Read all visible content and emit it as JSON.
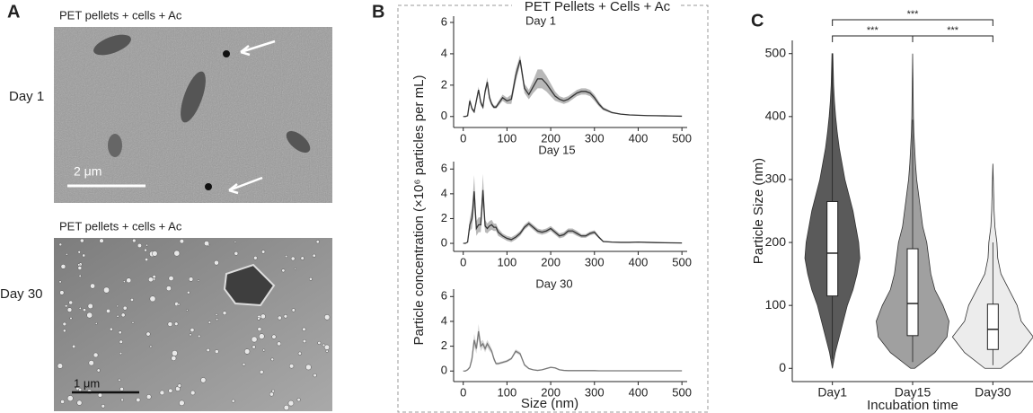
{
  "panels": {
    "panel_labels": [
      "A",
      "B",
      "C"
    ],
    "panel_a": {
      "images": [
        {
          "caption": "PET pellets + cells +  Ac",
          "label": "Day 1",
          "scale_bar": "2 μm"
        },
        {
          "caption": "PET pellets + cells + Ac",
          "label": "Day 30",
          "scale_bar": "1 μm"
        }
      ]
    },
    "panel_b": {
      "title": "PET Pellets + Cells + Ac",
      "ylabel": "Particle concentration (×10⁶ particles per mL)",
      "xlabel": "Size (nm)"
    }
  },
  "chart_data": [
    {
      "type": "line",
      "title": "Day 1",
      "color": "#333333",
      "band_color": "#a6a6a6",
      "x": [
        0,
        5,
        10,
        15,
        20,
        25,
        30,
        35,
        40,
        45,
        50,
        55,
        60,
        65,
        70,
        75,
        80,
        90,
        100,
        110,
        120,
        130,
        140,
        150,
        160,
        170,
        180,
        190,
        200,
        210,
        220,
        230,
        240,
        250,
        260,
        270,
        280,
        290,
        300,
        310,
        320,
        340,
        360,
        380,
        400,
        420,
        440,
        460,
        480,
        500
      ],
      "values": [
        0,
        0,
        0.05,
        1.0,
        0.5,
        0.3,
        1.0,
        1.7,
        0.9,
        0.6,
        1.6,
        2.2,
        1.2,
        0.8,
        0.6,
        0.6,
        0.8,
        1.2,
        1.0,
        1.1,
        2.6,
        3.6,
        1.8,
        1.4,
        1.9,
        2.4,
        2.4,
        2.1,
        1.7,
        1.3,
        1.1,
        1.0,
        1.1,
        1.3,
        1.5,
        1.6,
        1.6,
        1.5,
        1.2,
        0.8,
        0.5,
        0.25,
        0.15,
        0.1,
        0.08,
        0.06,
        0.05,
        0.04,
        0.03,
        0.02
      ],
      "errors": [
        0,
        0,
        0.02,
        0.2,
        0.1,
        0.1,
        0.2,
        0.2,
        0.2,
        0.1,
        0.2,
        0.3,
        0.2,
        0.15,
        0.1,
        0.1,
        0.15,
        0.2,
        0.2,
        0.3,
        0.4,
        0.3,
        0.3,
        0.3,
        0.4,
        0.6,
        0.6,
        0.5,
        0.4,
        0.3,
        0.2,
        0.2,
        0.2,
        0.2,
        0.2,
        0.2,
        0.2,
        0.2,
        0.2,
        0.15,
        0.1,
        0.05,
        0.03,
        0.02,
        0.02,
        0.01,
        0.01,
        0.01,
        0.01,
        0.01
      ],
      "xlim": [
        -22,
        512
      ],
      "ylim": [
        -0.7,
        6.4
      ],
      "xticks": [
        0,
        100,
        200,
        300,
        400,
        500
      ],
      "yticks": [
        0,
        2,
        4,
        6
      ]
    },
    {
      "type": "line",
      "title": "Day 15",
      "color": "#333333",
      "band_color": "#a6a6a6",
      "x": [
        0,
        5,
        10,
        15,
        20,
        25,
        30,
        35,
        40,
        45,
        50,
        55,
        60,
        65,
        70,
        75,
        80,
        90,
        100,
        110,
        120,
        130,
        140,
        150,
        160,
        170,
        180,
        190,
        200,
        210,
        220,
        230,
        240,
        250,
        260,
        270,
        280,
        290,
        300,
        310,
        320,
        340,
        360,
        380,
        400,
        420,
        440,
        460,
        480,
        500
      ],
      "values": [
        0,
        0,
        0.1,
        1.5,
        2.0,
        4.2,
        1.2,
        1.5,
        1.5,
        4.3,
        1.4,
        1.2,
        1.4,
        1.5,
        1.3,
        1.3,
        0.9,
        0.6,
        0.4,
        0.3,
        0.5,
        0.8,
        1.3,
        1.6,
        1.3,
        1.0,
        0.9,
        1.0,
        1.2,
        0.9,
        0.6,
        0.7,
        1.0,
        1.0,
        0.8,
        0.6,
        0.6,
        0.8,
        0.9,
        0.5,
        0.15,
        0.1,
        0.08,
        0.08,
        0.1,
        0.08,
        0.06,
        0.05,
        0.04,
        0.03
      ],
      "errors": [
        0,
        0,
        0.05,
        0.5,
        0.8,
        1.3,
        0.6,
        0.6,
        0.6,
        1.3,
        0.5,
        0.4,
        0.4,
        0.4,
        0.3,
        0.3,
        0.3,
        0.2,
        0.2,
        0.2,
        0.2,
        0.2,
        0.2,
        0.2,
        0.2,
        0.2,
        0.2,
        0.2,
        0.2,
        0.2,
        0.2,
        0.2,
        0.2,
        0.2,
        0.2,
        0.15,
        0.15,
        0.15,
        0.15,
        0.1,
        0.05,
        0.03,
        0.03,
        0.03,
        0.03,
        0.03,
        0.03,
        0.03,
        0.03,
        0.03
      ],
      "xlim": [
        -22,
        512
      ],
      "ylim": [
        -0.65,
        6.6
      ],
      "xticks": [
        0,
        100,
        200,
        300,
        400,
        500
      ],
      "yticks": [
        0,
        2,
        4,
        6
      ]
    },
    {
      "type": "line",
      "title": "Day 30",
      "color": "#777777",
      "band_color": "#cfcfcf",
      "x": [
        0,
        5,
        10,
        15,
        20,
        25,
        30,
        35,
        40,
        45,
        50,
        55,
        60,
        65,
        70,
        75,
        80,
        90,
        100,
        110,
        120,
        130,
        140,
        150,
        160,
        170,
        180,
        190,
        200,
        210,
        220,
        230,
        240,
        250,
        260,
        270,
        280,
        290,
        300,
        310,
        320,
        340,
        360,
        380,
        400,
        420,
        440,
        460,
        480,
        500
      ],
      "values": [
        0,
        0,
        0.1,
        0.3,
        1.0,
        2.5,
        1.8,
        3.2,
        2.0,
        2.2,
        1.8,
        2.2,
        1.9,
        1.6,
        1.0,
        0.6,
        0.6,
        0.7,
        0.8,
        1.0,
        1.6,
        1.4,
        0.5,
        0.2,
        0.1,
        0.05,
        0.1,
        0.2,
        0.3,
        0.25,
        0.1,
        0.05,
        0.03,
        0.03,
        0.03,
        0.03,
        0.03,
        0.03,
        0.03,
        0.02,
        0.02,
        0.02,
        0.02,
        0.02,
        0.02,
        0.02,
        0.02,
        0.02,
        0.02,
        0.02
      ],
      "errors": [
        0,
        0,
        0.05,
        0.1,
        0.3,
        0.5,
        0.4,
        0.6,
        0.4,
        0.3,
        0.3,
        0.3,
        0.3,
        0.2,
        0.2,
        0.1,
        0.1,
        0.1,
        0.1,
        0.1,
        0.15,
        0.15,
        0.1,
        0.05,
        0.03,
        0.02,
        0.03,
        0.05,
        0.05,
        0.05,
        0.03,
        0.02,
        0.01,
        0.01,
        0.01,
        0.01,
        0.01,
        0.01,
        0.01,
        0.01,
        0.01,
        0.01,
        0.01,
        0.01,
        0.01,
        0.01,
        0.01,
        0.01,
        0.01,
        0.01
      ],
      "xlim": [
        -22,
        512
      ],
      "ylim": [
        -0.85,
        6.6
      ],
      "xticks": [
        0,
        100,
        200,
        300,
        400,
        500
      ],
      "yticks": [
        0,
        2,
        4,
        6
      ]
    },
    {
      "type": "violin",
      "xlabel": "Incubation time",
      "ylabel": "Particle Size (nm)",
      "categories": [
        "Day1",
        "Day15",
        "Day30"
      ],
      "colors": [
        "#5a5a5a",
        "#a0a0a0",
        "#ececec"
      ],
      "density_y": [
        0,
        25,
        50,
        75,
        100,
        125,
        150,
        175,
        200,
        225,
        250,
        275,
        300,
        325,
        350,
        375,
        400,
        425,
        450,
        475,
        500
      ],
      "density": [
        [
          0,
          0.07,
          0.17,
          0.27,
          0.37,
          0.51,
          0.61,
          0.68,
          0.65,
          0.58,
          0.51,
          0.41,
          0.31,
          0.24,
          0.17,
          0.12,
          0.08,
          0.05,
          0.03,
          0.02,
          0.01
        ],
        [
          0.05,
          0.55,
          0.85,
          0.9,
          0.75,
          0.55,
          0.45,
          0.4,
          0.35,
          0.25,
          0.2,
          0.15,
          0.1,
          0.07,
          0.05,
          0.03,
          0.02,
          0.015,
          0.01,
          0.005,
          0
        ],
        [
          0.2,
          0.7,
          1.0,
          0.7,
          0.6,
          0.4,
          0.2,
          0.12,
          0.1,
          0.05,
          0.03,
          0.02,
          0.01,
          0,
          0,
          0,
          0,
          0,
          0,
          0,
          0
        ]
      ],
      "boxes": [
        {
          "min": 15,
          "q1": 115,
          "median": 183,
          "q3": 265,
          "max": 500
        },
        {
          "min": 10,
          "q1": 52,
          "median": 103,
          "q3": 190,
          "max": 395
        },
        {
          "min": 5,
          "q1": 30,
          "median": 62,
          "q3": 102,
          "max": 200
        }
      ],
      "annotations": [
        {
          "text": "***",
          "between": [
            "Day1",
            "Day15"
          ]
        },
        {
          "text": "***",
          "between": [
            "Day15",
            "Day30"
          ]
        },
        {
          "text": "***",
          "between": [
            "Day1",
            "Day30"
          ]
        }
      ],
      "ylim": [
        -21,
        521
      ],
      "yticks": [
        0,
        100,
        200,
        300,
        400,
        500
      ]
    }
  ]
}
